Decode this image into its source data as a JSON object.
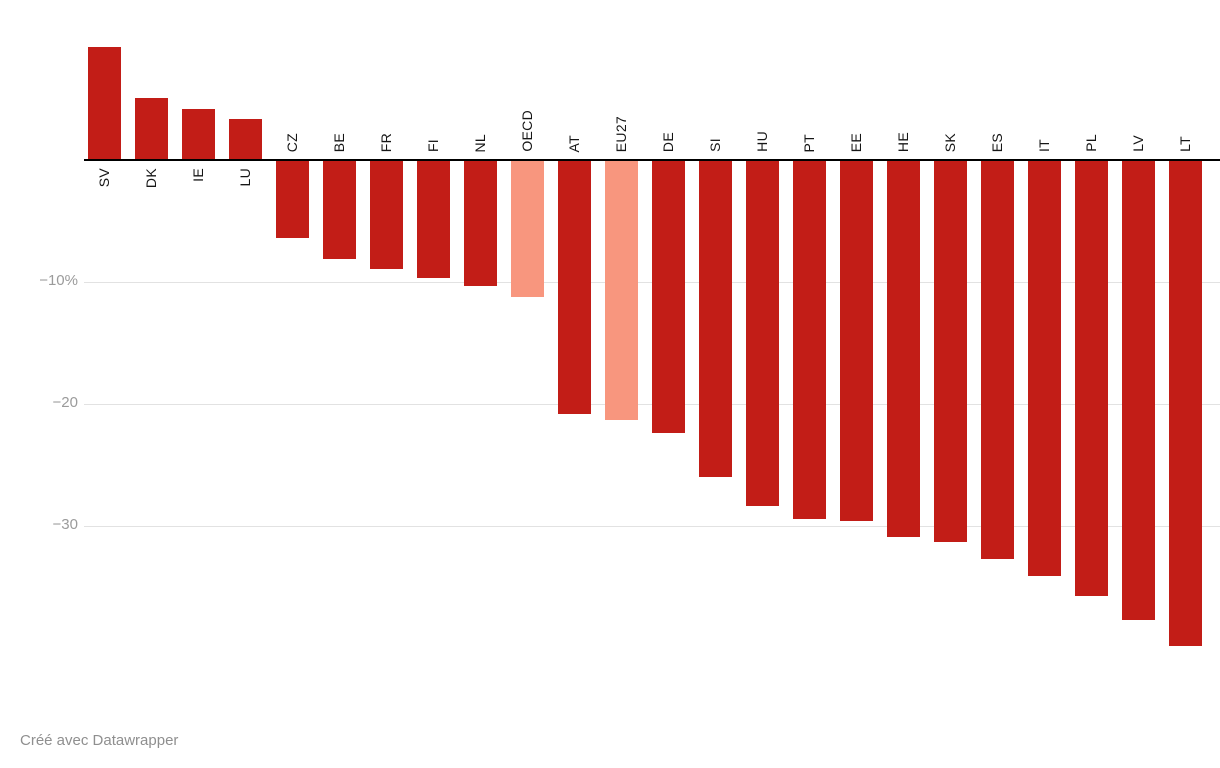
{
  "chart_data": {
    "type": "bar",
    "categories": [
      "SV",
      "DK",
      "IE",
      "LU",
      "CZ",
      "BE",
      "FR",
      "FI",
      "NL",
      "OECD",
      "AT",
      "EU27",
      "DE",
      "SI",
      "HU",
      "PT",
      "EE",
      "HE",
      "SK",
      "ES",
      "IT",
      "PL",
      "LV",
      "LT"
    ],
    "values": [
      9.3,
      5.1,
      4.2,
      3.4,
      -6.4,
      -8.1,
      -8.9,
      -9.7,
      -10.3,
      -11.2,
      -20.8,
      -21.3,
      -22.4,
      -26.0,
      -28.4,
      -29.4,
      -29.6,
      -30.9,
      -31.3,
      -32.7,
      -34.1,
      -35.7,
      -37.7,
      -39.8
    ],
    "highlighted": [
      "OECD",
      "EU27"
    ],
    "bar_color": "#c21d17",
    "highlight_color": "#f8967e",
    "grid_color": "#e2e2e2",
    "axis_color": "#000000",
    "yticks": [
      {
        "value": -10,
        "label": "−10%"
      },
      {
        "value": -20,
        "label": "−20"
      },
      {
        "value": -30,
        "label": "−30"
      }
    ],
    "ylim": [
      -40,
      10
    ],
    "grid": true,
    "legend_position": "none",
    "title": "",
    "xlabel": "",
    "ylabel": ""
  },
  "footer": {
    "credit": "Créé avec Datawrapper"
  }
}
